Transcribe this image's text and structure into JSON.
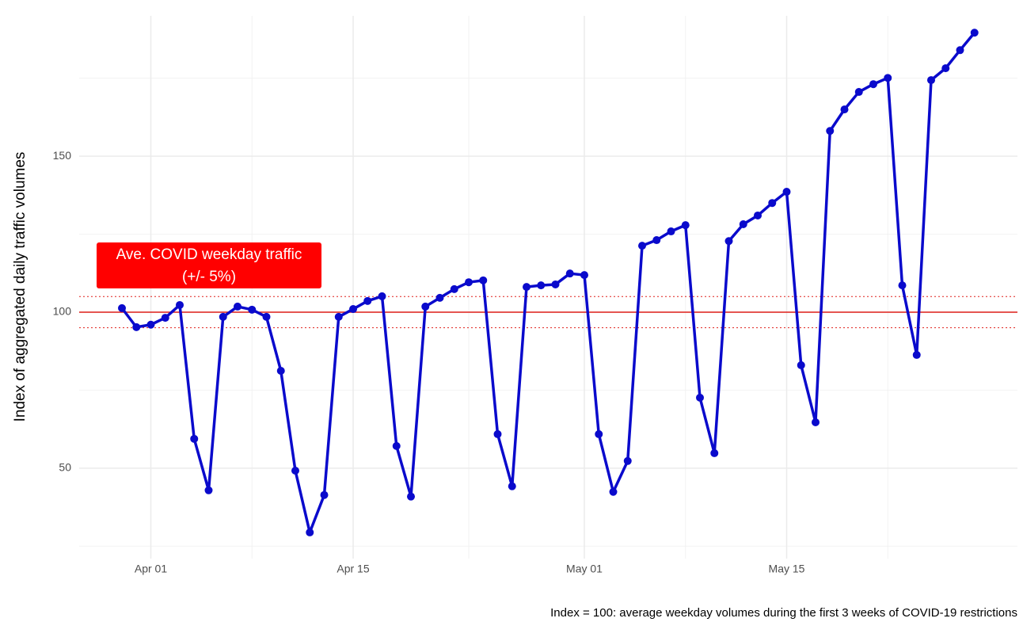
{
  "chart_data": {
    "type": "line",
    "y_label": "Index of aggregated daily traffic volumes",
    "caption": "Index = 100: average weekday volumes during the first 3 weeks of COVID-19 restrictions",
    "annotation": [
      "Ave. COVID weekday traffic",
      "(+/- 5%)"
    ],
    "annotation_color": "#ff0000",
    "reference": 100,
    "reference_band": [
      95,
      105
    ],
    "reference_color": "#e0201b",
    "x": [
      "Mar 30",
      "Mar 31",
      "Apr 01",
      "Apr 02",
      "Apr 03",
      "Apr 04",
      "Apr 05",
      "Apr 06",
      "Apr 07",
      "Apr 08",
      "Apr 09",
      "Apr 10",
      "Apr 11",
      "Apr 12",
      "Apr 13",
      "Apr 14",
      "Apr 15",
      "Apr 16",
      "Apr 17",
      "Apr 18",
      "Apr 19",
      "Apr 20",
      "Apr 21",
      "Apr 22",
      "Apr 23",
      "Apr 24",
      "Apr 25",
      "Apr 26",
      "Apr 27",
      "Apr 28",
      "Apr 29",
      "Apr 30",
      "May 01",
      "May 02",
      "May 03",
      "May 04",
      "May 05",
      "May 06",
      "May 07",
      "May 08",
      "May 09",
      "May 10",
      "May 11",
      "May 12",
      "May 13",
      "May 14",
      "May 15",
      "May 16",
      "May 17",
      "May 18",
      "May 19",
      "May 20",
      "May 21",
      "May 22",
      "May 23",
      "May 24",
      "May 25",
      "May 26",
      "May 27",
      "May 28"
    ],
    "xticks": [
      "Apr 01",
      "Apr 15",
      "May 01",
      "May 15"
    ],
    "series": [
      {
        "color": "#0a0acc",
        "values": [
          101.3,
          95.2,
          96,
          98.2,
          102.3,
          59.4,
          42.9,
          98.5,
          101.8,
          100.8,
          98.5,
          81.2,
          49.2,
          29.4,
          41.4,
          98.5,
          101,
          103.6,
          105.1,
          57.1,
          40.9,
          101.8,
          104.6,
          107.4,
          109.6,
          110.2,
          60.9,
          44.2,
          108.1,
          108.6,
          108.9,
          112.4,
          111.9,
          60.9,
          42.4,
          52.3,
          121.3,
          123.1,
          125.9,
          127.9,
          72.6,
          54.8,
          122.8,
          128.2,
          131,
          135,
          138.6,
          83,
          64.7,
          158.1,
          165,
          170.6,
          173.1,
          175.1,
          108.6,
          86.3,
          174.4,
          178.2,
          184,
          189.6
        ]
      }
    ],
    "ylim": [
      21,
      195
    ],
    "yticks": [
      50,
      100,
      150
    ],
    "grid": true
  }
}
